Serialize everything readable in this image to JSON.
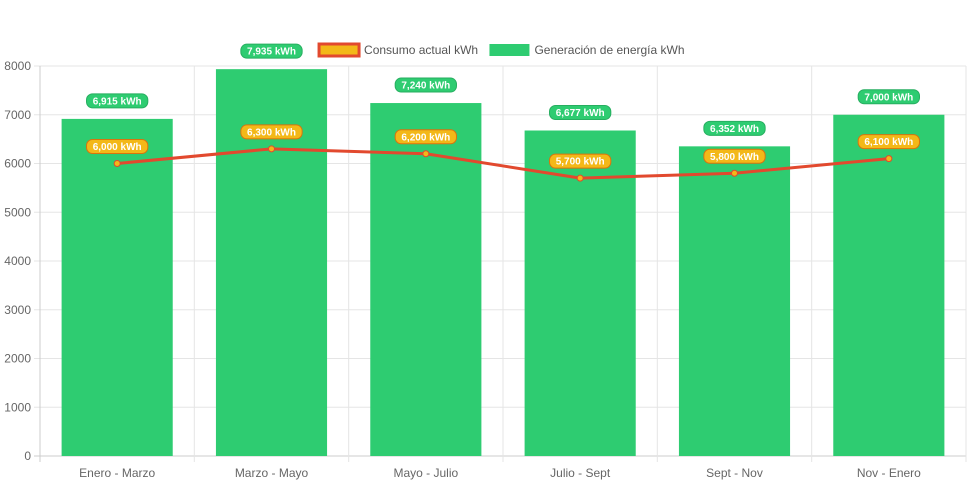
{
  "chart_data": {
    "type": "bar",
    "title": "",
    "xlabel": "",
    "ylabel": "",
    "categories": [
      "Enero - Marzo",
      "Marzo - Mayo",
      "Mayo - Julio",
      "Julio - Sept",
      "Sept - Nov",
      "Nov - Enero"
    ],
    "ylim": [
      0,
      8000
    ],
    "y_ticks": [
      0,
      1000,
      2000,
      3000,
      4000,
      5000,
      6000,
      7000,
      8000
    ],
    "grid": true,
    "legend_position": "top-center",
    "series": [
      {
        "name": "Consumo actual kWh",
        "type": "line",
        "values": [
          6000,
          6300,
          6200,
          5700,
          5800,
          6100
        ],
        "labels": [
          "6,000 kWh",
          "6,300 kWh",
          "6,200 kWh",
          "5,700 kWh",
          "5,800 kWh",
          "6,100 kWh"
        ],
        "line_color": "#e2492e",
        "point_color": "#f3b818",
        "label_bg": "#f3b818",
        "label_border": "#d9730d"
      },
      {
        "name": "Generación de energía kWh",
        "type": "bar",
        "values": [
          6915,
          7935,
          7240,
          6677,
          6352,
          7000
        ],
        "labels": [
          "6,915 kWh",
          "7,935 kWh",
          "7,240 kWh",
          "6,677 kWh",
          "6,352 kWh",
          "7,000 kWh"
        ],
        "bar_color": "#2ecc71",
        "label_bg": "#2ecc71",
        "label_border": "#27ae60"
      }
    ],
    "legend": [
      {
        "label": "Consumo actual kWh",
        "fill": "#f3b818",
        "stroke": "#e2492e"
      },
      {
        "label": "Generación de energía kWh",
        "fill": "#2ecc71",
        "stroke": "#2ecc71"
      }
    ],
    "colors": {
      "grid": "#e5e5e5",
      "axis": "#cccccc",
      "tick_text": "#666666"
    }
  }
}
